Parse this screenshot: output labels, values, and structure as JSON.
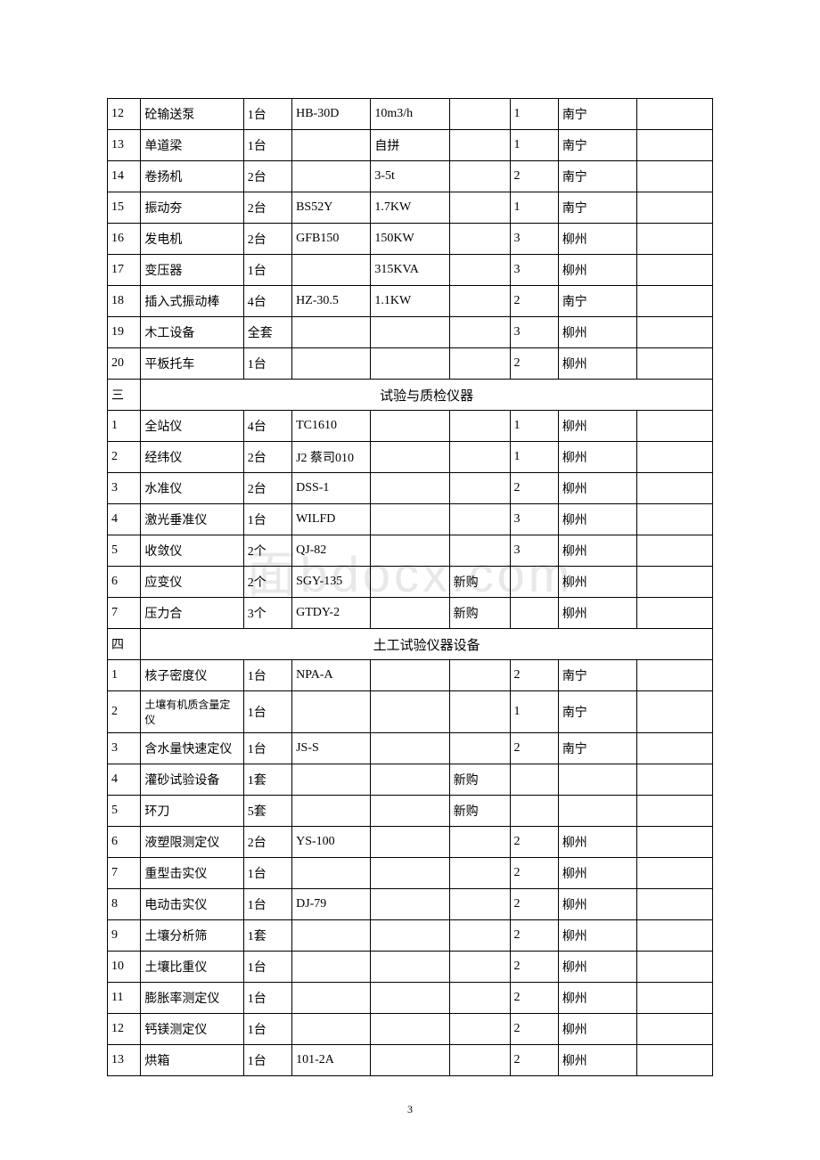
{
  "columnWidths": {
    "c0": "5.5%",
    "c1": "17%",
    "c2": "8%",
    "c3": "13%",
    "c4": "13%",
    "c5": "10%",
    "c6": "8%",
    "c7": "13%",
    "c8": "12.5%"
  },
  "section1_rows": [
    {
      "idx": "12",
      "name": "砼输送泵",
      "qty": "1台",
      "model": "HB-30D",
      "spec": "10m3/h",
      "note": "",
      "usage": "1",
      "loc": "南宁",
      "remark": ""
    },
    {
      "idx": "13",
      "name": "单道梁",
      "qty": "1台",
      "model": "",
      "spec": "自拼",
      "note": "",
      "usage": "1",
      "loc": "南宁",
      "remark": ""
    },
    {
      "idx": "14",
      "name": "卷扬机",
      "qty": "2台",
      "model": "",
      "spec": "3-5t",
      "note": "",
      "usage": "2",
      "loc": "南宁",
      "remark": ""
    },
    {
      "idx": "15",
      "name": "振动夯",
      "qty": "2台",
      "model": "BS52Y",
      "spec": "1.7KW",
      "note": "",
      "usage": "1",
      "loc": "南宁",
      "remark": ""
    },
    {
      "idx": "16",
      "name": "发电机",
      "qty": "2台",
      "model": "GFB150",
      "spec": "150KW",
      "note": "",
      "usage": "3",
      "loc": "柳州",
      "remark": ""
    },
    {
      "idx": "17",
      "name": "变压器",
      "qty": "1台",
      "model": "",
      "spec": "315KVA",
      "note": "",
      "usage": "3",
      "loc": "柳州",
      "remark": ""
    },
    {
      "idx": "18",
      "name": "插入式振动棒",
      "qty": "4台",
      "model": "HZ-30.5",
      "spec": "1.1KW",
      "note": "",
      "usage": "2",
      "loc": "南宁",
      "remark": ""
    },
    {
      "idx": "19",
      "name": "木工设备",
      "qty": "全套",
      "model": "",
      "spec": "",
      "note": "",
      "usage": "3",
      "loc": "柳州",
      "remark": ""
    },
    {
      "idx": "20",
      "name": "平板托车",
      "qty": "1台",
      "model": "",
      "spec": "",
      "note": "",
      "usage": "2",
      "loc": "柳州",
      "remark": ""
    }
  ],
  "section3_title": "试验与质检仪器",
  "section3_idx": "三",
  "section3_rows": [
    {
      "idx": "1",
      "name": "全站仪",
      "qty": "4台",
      "model": "TC1610",
      "spec": "",
      "note": "",
      "usage": "1",
      "loc": "柳州",
      "remark": ""
    },
    {
      "idx": "2",
      "name": "经纬仪",
      "qty": "2台",
      "model": "J2 蔡司010",
      "spec": "",
      "note": "",
      "usage": "1",
      "loc": "柳州",
      "remark": ""
    },
    {
      "idx": "3",
      "name": "水准仪",
      "qty": "2台",
      "model": "DSS-1",
      "spec": "",
      "note": "",
      "usage": "2",
      "loc": "柳州",
      "remark": ""
    },
    {
      "idx": "4",
      "name": "激光垂准仪",
      "qty": "1台",
      "model": "WILFD",
      "spec": "",
      "note": "",
      "usage": "3",
      "loc": "柳州",
      "remark": ""
    },
    {
      "idx": "5",
      "name": "收敛仪",
      "qty": "2个",
      "model": "QJ-82",
      "spec": "",
      "note": "",
      "usage": "3",
      "loc": "柳州",
      "remark": ""
    },
    {
      "idx": "6",
      "name": "应变仪",
      "qty": "2个",
      "model": "SGY-135",
      "spec": "",
      "note": "新购",
      "usage": "",
      "loc": "柳州",
      "remark": ""
    },
    {
      "idx": "7",
      "name": "压力合",
      "qty": "3个",
      "model": "GTDY-2",
      "spec": "",
      "note": "新购",
      "usage": "",
      "loc": "柳州",
      "remark": ""
    }
  ],
  "section4_title": "土工试验仪器设备",
  "section4_idx": "四",
  "section4_rows": [
    {
      "idx": "1",
      "name": "核子密度仪",
      "qty": "1台",
      "model": "NPA-A",
      "spec": "",
      "note": "",
      "usage": "2",
      "loc": "南宁",
      "remark": ""
    },
    {
      "idx": "2",
      "name": "土壤有机质含量定仪",
      "qty": "1台",
      "model": "",
      "spec": "",
      "note": "",
      "usage": "1",
      "loc": "南宁",
      "remark": "",
      "smallName": true
    },
    {
      "idx": "3",
      "name": "含水量快速定仪",
      "qty": "1台",
      "model": "JS-S",
      "spec": "",
      "note": "",
      "usage": "2",
      "loc": "南宁",
      "remark": ""
    },
    {
      "idx": "4",
      "name": "灌砂试验设备",
      "qty": "1套",
      "model": "",
      "spec": "",
      "note": "新购",
      "usage": "",
      "loc": "",
      "remark": ""
    },
    {
      "idx": "5",
      "name": "环刀",
      "qty": "5套",
      "model": "",
      "spec": "",
      "note": "新购",
      "usage": "",
      "loc": "",
      "remark": ""
    },
    {
      "idx": "6",
      "name": "液塑限测定仪",
      "qty": "2台",
      "model": "YS-100",
      "spec": "",
      "note": "",
      "usage": "2",
      "loc": "柳州",
      "remark": ""
    },
    {
      "idx": "7",
      "name": "重型击实仪",
      "qty": "1台",
      "model": "",
      "spec": "",
      "note": "",
      "usage": "2",
      "loc": "柳州",
      "remark": ""
    },
    {
      "idx": "8",
      "name": "电动击实仪",
      "qty": "1台",
      "model": "DJ-79",
      "spec": "",
      "note": "",
      "usage": "2",
      "loc": "柳州",
      "remark": ""
    },
    {
      "idx": "9",
      "name": "土壤分析筛",
      "qty": "1套",
      "model": "",
      "spec": "",
      "note": "",
      "usage": "2",
      "loc": "柳州",
      "remark": ""
    },
    {
      "idx": "10",
      "name": "土壤比重仪",
      "qty": "1台",
      "model": "",
      "spec": "",
      "note": "",
      "usage": "2",
      "loc": "柳州",
      "remark": ""
    },
    {
      "idx": "11",
      "name": "膨胀率测定仪",
      "qty": "1台",
      "model": "",
      "spec": "",
      "note": "",
      "usage": "2",
      "loc": "柳州",
      "remark": ""
    },
    {
      "idx": "12",
      "name": "钙镁测定仪",
      "qty": "1台",
      "model": "",
      "spec": "",
      "note": "",
      "usage": "2",
      "loc": "柳州",
      "remark": ""
    },
    {
      "idx": "13",
      "name": "烘箱",
      "qty": "1台",
      "model": "101-2A",
      "spec": "",
      "note": "",
      "usage": "2",
      "loc": "柳州",
      "remark": ""
    }
  ],
  "watermark": "面bdocx.com",
  "page_number": "3"
}
